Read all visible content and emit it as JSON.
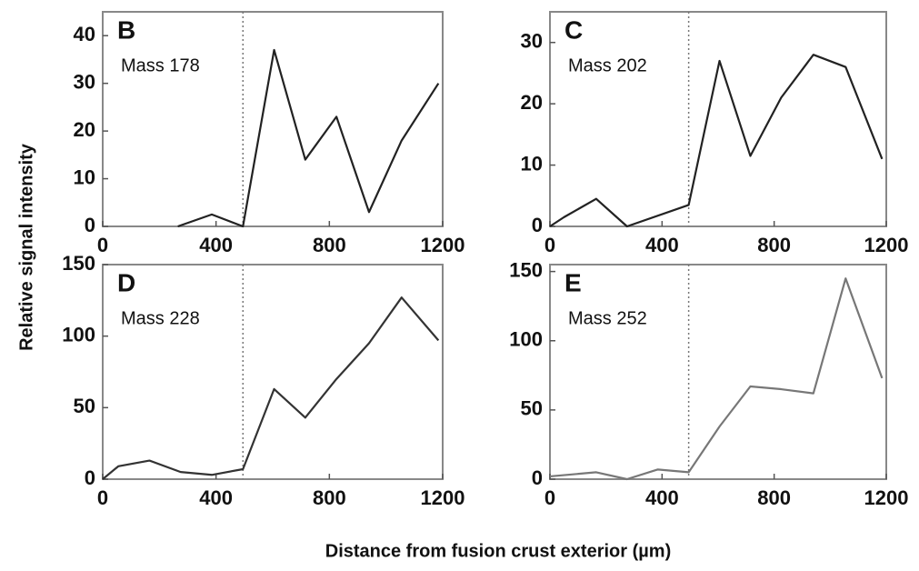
{
  "ylabel": "Relative signal intensity",
  "xlabel": "Distance from fusion crust exterior (µm)",
  "chart_data": [
    {
      "type": "line",
      "letter": "B",
      "label": "Mass 178",
      "color": "#222222",
      "x": [
        265,
        385,
        495,
        605,
        715,
        825,
        940,
        1055,
        1185
      ],
      "values": [
        0,
        2.5,
        0,
        37,
        14,
        23,
        3,
        18,
        30
      ],
      "xlim": [
        0,
        1200
      ],
      "xticks": [
        0,
        400,
        800,
        1200
      ],
      "ylim": [
        0,
        45
      ],
      "yticks": [
        0,
        10,
        20,
        30,
        40
      ],
      "vline": 495
    },
    {
      "type": "line",
      "letter": "C",
      "label": "Mass 202",
      "color": "#222222",
      "x": [
        0,
        50,
        165,
        275,
        495,
        605,
        715,
        825,
        940,
        1055,
        1185
      ],
      "values": [
        0,
        1.5,
        4.5,
        0,
        3.5,
        27,
        11.5,
        21,
        28,
        26,
        11
      ],
      "xlim": [
        0,
        1200
      ],
      "xticks": [
        0,
        400,
        800,
        1200
      ],
      "ylim": [
        0,
        35
      ],
      "yticks": [
        0,
        10,
        20,
        30
      ],
      "vline": 495
    },
    {
      "type": "line",
      "letter": "D",
      "label": "Mass 228",
      "color": "#333333",
      "x": [
        0,
        55,
        165,
        275,
        385,
        495,
        605,
        715,
        825,
        940,
        1055,
        1185
      ],
      "values": [
        0,
        9,
        13,
        5,
        3,
        7,
        63,
        43,
        70,
        95,
        127,
        97
      ],
      "xlim": [
        0,
        1200
      ],
      "xticks": [
        0,
        400,
        800,
        1200
      ],
      "ylim": [
        0,
        150
      ],
      "yticks": [
        0,
        50,
        100,
        150
      ],
      "vline": 495
    },
    {
      "type": "line",
      "letter": "E",
      "label": "Mass 252",
      "color": "#777777",
      "x": [
        0,
        165,
        275,
        385,
        495,
        605,
        715,
        825,
        940,
        1055,
        1185
      ],
      "values": [
        2,
        5,
        0,
        7,
        5,
        38,
        67,
        65,
        62,
        145,
        73
      ],
      "xlim": [
        0,
        1200
      ],
      "xticks": [
        0,
        400,
        800,
        1200
      ],
      "ylim": [
        0,
        155
      ],
      "yticks": [
        0,
        50,
        100,
        150
      ],
      "vline": 495
    }
  ]
}
